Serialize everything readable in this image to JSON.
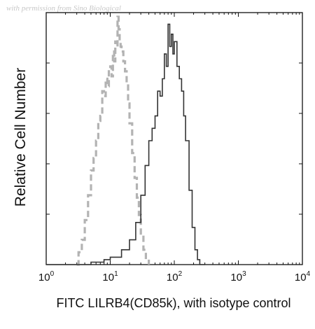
{
  "watermark": "with permission from Sino Biological",
  "chart_data": {
    "type": "histogram",
    "title": "",
    "xlabel": "FITC LILRB4(CD85k), with isotype control",
    "ylabel": "Relative Cell Number",
    "x_scale": "log",
    "xlim": [
      1,
      10000
    ],
    "ylim": [
      0,
      1
    ],
    "grid": false,
    "legend": "none",
    "x_ticks": [
      {
        "base": "10",
        "exp": "0",
        "value": 1
      },
      {
        "base": "10",
        "exp": "1",
        "value": 10
      },
      {
        "base": "10",
        "exp": "2",
        "value": 100
      },
      {
        "base": "10",
        "exp": "3",
        "value": 1000
      },
      {
        "base": "10",
        "exp": "4",
        "value": 10000
      }
    ],
    "series": [
      {
        "role": "isotype control",
        "style": "dashed",
        "color": "#b3b3b3",
        "x": [
          3,
          3.2,
          3.6,
          4,
          4.5,
          5,
          5.5,
          6,
          6.5,
          7,
          7.5,
          8,
          8.5,
          9,
          9.5,
          10,
          10.5,
          11,
          11.5,
          12,
          12.5,
          13,
          13.5,
          14,
          14.5,
          15,
          16,
          17,
          18,
          19,
          20,
          22,
          24,
          26,
          28,
          30,
          33,
          36,
          40
        ],
        "y": [
          0.0,
          0.05,
          0.1,
          0.18,
          0.28,
          0.38,
          0.43,
          0.5,
          0.58,
          0.6,
          0.7,
          0.68,
          0.75,
          0.72,
          0.78,
          0.8,
          0.76,
          0.86,
          0.82,
          0.9,
          0.88,
          1.0,
          0.95,
          0.9,
          0.88,
          0.86,
          0.82,
          0.78,
          0.73,
          0.65,
          0.57,
          0.45,
          0.35,
          0.27,
          0.2,
          0.12,
          0.06,
          0.02,
          0.0
        ]
      },
      {
        "role": "LILRB4 (CD85k) stained",
        "style": "solid",
        "color": "#333333",
        "x": [
          1,
          3,
          5,
          8,
          10,
          15,
          20,
          25,
          30,
          35,
          40,
          45,
          50,
          55,
          60,
          65,
          70,
          75,
          80,
          85,
          90,
          95,
          100,
          110,
          120,
          130,
          140,
          150,
          170,
          190,
          210,
          230,
          250,
          300
        ],
        "y": [
          0.0,
          0.0,
          0.01,
          0.02,
          0.03,
          0.06,
          0.1,
          0.17,
          0.28,
          0.4,
          0.5,
          0.55,
          0.6,
          0.7,
          0.68,
          0.75,
          0.85,
          0.8,
          0.97,
          0.88,
          0.93,
          0.85,
          0.9,
          0.8,
          0.75,
          0.7,
          0.6,
          0.5,
          0.3,
          0.15,
          0.06,
          0.02,
          0.0,
          0.0
        ]
      }
    ]
  }
}
